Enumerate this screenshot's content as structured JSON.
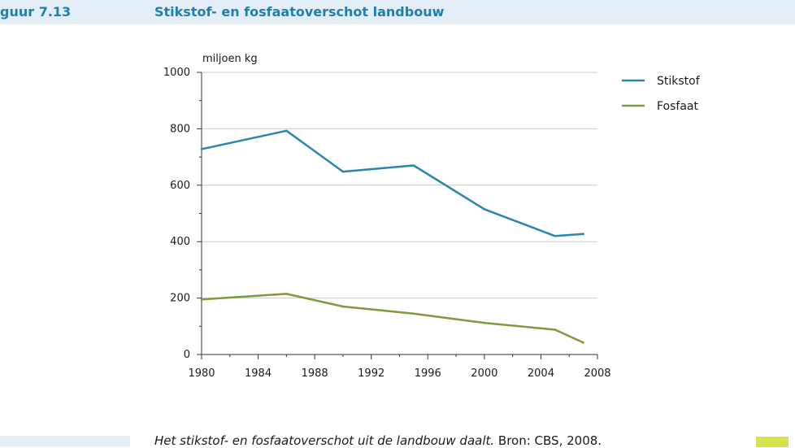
{
  "header": {
    "figure_label": "guur 7.13",
    "title": "Stikstof- en fosfaatoverschot landbouw"
  },
  "caption": {
    "text": "Het stikstof- en fosfaatoverschot uit de landbouw daalt.",
    "source": "Bron: CBS, 2008."
  },
  "colors": {
    "accent": "#1e7fb0",
    "stikstof": "#2a86ad",
    "fosfaat": "#7d9a3c",
    "band": "#e4eef6"
  },
  "chart_data": {
    "type": "line",
    "title": "Stikstof- en fosfaatoverschot landbouw",
    "xlabel": "",
    "ylabel": "miljoen kg",
    "xlim": [
      1980,
      2008
    ],
    "ylim": [
      0,
      1000
    ],
    "xticks": [
      1980,
      1984,
      1988,
      1992,
      1996,
      2000,
      2004,
      2008
    ],
    "yticks": [
      0,
      200,
      400,
      600,
      800,
      1000
    ],
    "grid": "horizontal",
    "legend_position": "top-right",
    "series": [
      {
        "name": "Stikstof",
        "color": "#2a86ad",
        "x": [
          1980,
          1986,
          1990,
          1995,
          2000,
          2005,
          2007
        ],
        "values": [
          728,
          793,
          648,
          670,
          515,
          420,
          427
        ]
      },
      {
        "name": "Fosfaat",
        "color": "#7d9a3c",
        "x": [
          1980,
          1986,
          1990,
          1995,
          2000,
          2005,
          2007
        ],
        "values": [
          195,
          215,
          170,
          145,
          112,
          88,
          42
        ]
      }
    ]
  }
}
